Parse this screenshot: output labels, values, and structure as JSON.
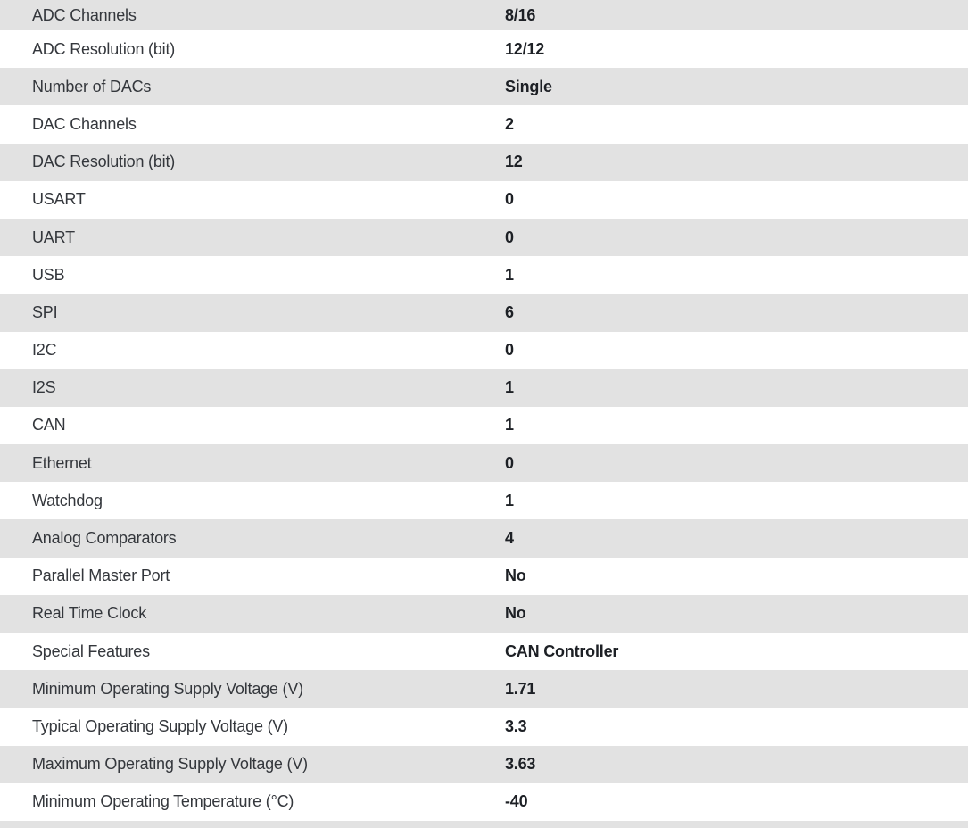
{
  "table": {
    "rows": [
      {
        "label": "ADC Channels",
        "value": "8/16"
      },
      {
        "label": "ADC Resolution (bit)",
        "value": "12/12"
      },
      {
        "label": "Number of DACs",
        "value": "Single"
      },
      {
        "label": "DAC Channels",
        "value": "2"
      },
      {
        "label": "DAC Resolution (bit)",
        "value": "12"
      },
      {
        "label": "USART",
        "value": "0"
      },
      {
        "label": "UART",
        "value": "0"
      },
      {
        "label": "USB",
        "value": "1"
      },
      {
        "label": "SPI",
        "value": "6"
      },
      {
        "label": "I2C",
        "value": "0"
      },
      {
        "label": "I2S",
        "value": "1"
      },
      {
        "label": "CAN",
        "value": "1"
      },
      {
        "label": "Ethernet",
        "value": "0"
      },
      {
        "label": "Watchdog",
        "value": "1"
      },
      {
        "label": "Analog Comparators",
        "value": "4"
      },
      {
        "label": "Parallel Master Port",
        "value": "No"
      },
      {
        "label": "Real Time Clock",
        "value": "No"
      },
      {
        "label": "Special Features",
        "value": "CAN Controller"
      },
      {
        "label": "Minimum Operating Supply Voltage (V)",
        "value": "1.71"
      },
      {
        "label": "Typical Operating Supply Voltage (V)",
        "value": "3.3"
      },
      {
        "label": "Maximum Operating Supply Voltage (V)",
        "value": "3.63"
      },
      {
        "label": "Minimum Operating Temperature (°C)",
        "value": "-40"
      }
    ]
  },
  "colors": {
    "row_alt_bg": "#e2e2e2",
    "row_bg": "#ffffff",
    "label_color": "#34373c",
    "value_color": "#1d2025"
  }
}
